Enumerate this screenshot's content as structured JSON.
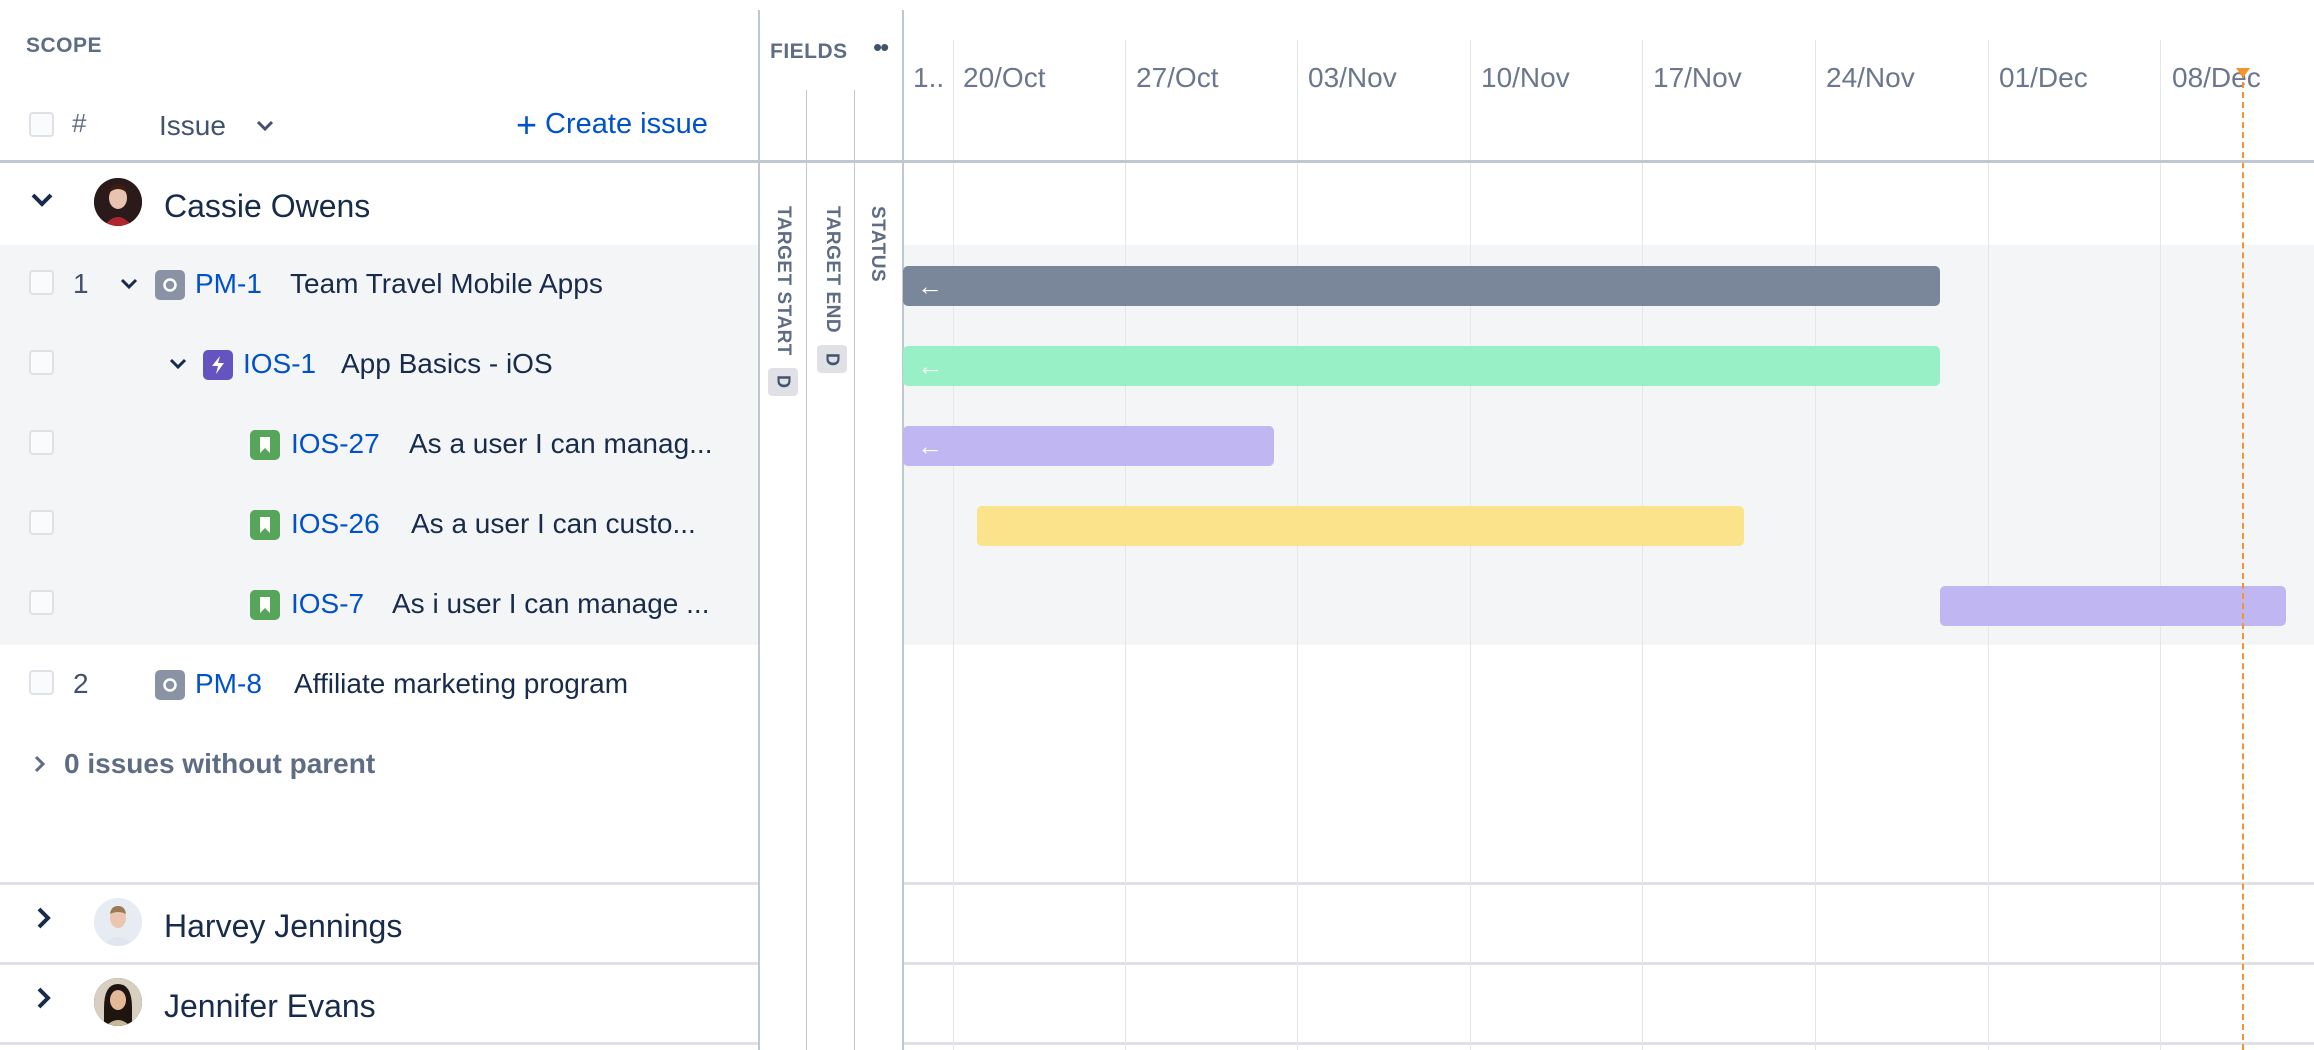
{
  "scope": {
    "title": "SCOPE",
    "hash_label": "#",
    "issue_header": "Issue",
    "create_issue": "Create issue"
  },
  "fields": {
    "title": "FIELDS",
    "columns": [
      "TARGET START",
      "TARGET END",
      "STATUS"
    ],
    "badge": "D"
  },
  "timeline": {
    "dates": [
      "1..",
      "20/Oct",
      "27/Oct",
      "03/Nov",
      "10/Nov",
      "17/Nov",
      "24/Nov",
      "01/Dec",
      "08/Dec"
    ]
  },
  "groups": [
    {
      "name": "Cassie Owens",
      "expanded": true
    },
    {
      "name": "Harvey Jennings",
      "expanded": false
    },
    {
      "name": "Jennifer Evans",
      "expanded": false
    }
  ],
  "issues": [
    {
      "num": "1",
      "key": "PM-1",
      "summary": "Team Travel Mobile Apps",
      "type": "epic",
      "bar_color": "#7a869a"
    },
    {
      "num": "",
      "key": "IOS-1",
      "summary": "App Basics - iOS",
      "type": "epic-purple",
      "bar_color": "#98f0c6"
    },
    {
      "num": "",
      "key": "IOS-27",
      "summary": "As a user I can manag...",
      "type": "story",
      "bar_color": "#c0b6f2"
    },
    {
      "num": "",
      "key": "IOS-26",
      "summary": "As a user I can custo...",
      "type": "story",
      "bar_color": "#fae38b"
    },
    {
      "num": "",
      "key": "IOS-7",
      "summary": "As i user I can manage ...",
      "type": "story",
      "bar_color": "#c0b6f2"
    },
    {
      "num": "2",
      "key": "PM-8",
      "summary": "Affiliate marketing program",
      "type": "epic",
      "bar_color": ""
    }
  ],
  "no_parent": "0 issues without parent",
  "colors": {
    "accent": "#0052cc",
    "today": "#f79232",
    "story_icon": "#57a55a",
    "epic_icon": "#8993a4",
    "purple_icon": "#6554c0"
  }
}
